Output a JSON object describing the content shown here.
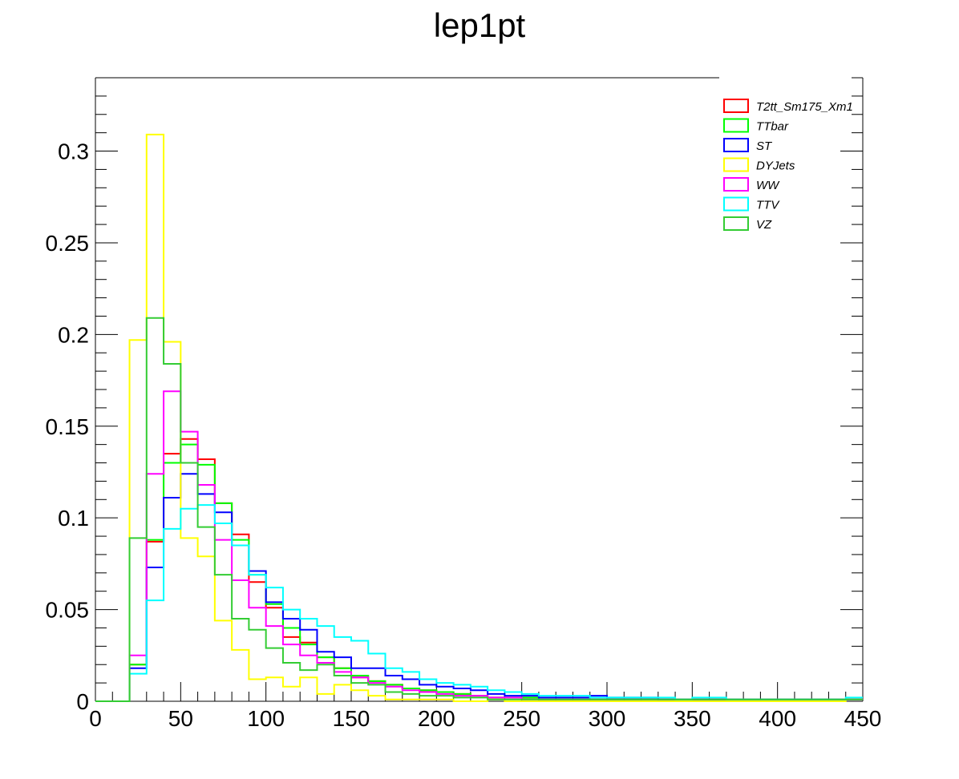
{
  "chart_data": {
    "type": "histogram",
    "title": "lep1pt",
    "xlabel": "",
    "ylabel": "",
    "xlim": [
      0,
      450
    ],
    "ylim": [
      0,
      0.34
    ],
    "bin_edges": [
      0,
      10,
      20,
      30,
      40,
      50,
      60,
      70,
      80,
      90,
      100,
      110,
      120,
      130,
      140,
      150,
      160,
      170,
      180,
      190,
      200,
      210,
      220,
      230,
      240,
      250,
      260,
      270,
      280,
      290,
      300,
      310,
      320,
      330,
      340,
      350,
      360,
      370,
      380,
      390,
      400,
      410,
      420,
      430,
      440,
      450
    ],
    "x_ticks": [
      0,
      50,
      100,
      150,
      200,
      250,
      300,
      350,
      400,
      450
    ],
    "x_tick_labels": [
      "0",
      "50",
      "100",
      "150",
      "200",
      "250",
      "300",
      "350",
      "400",
      "450"
    ],
    "y_ticks": [
      0,
      0.05,
      0.1,
      0.15,
      0.2,
      0.25,
      0.3
    ],
    "y_tick_labels": [
      "0",
      "0.05",
      "0.1",
      "0.15",
      "0.2",
      "0.25",
      "0.3"
    ],
    "grid": false,
    "legend_position": "top-right",
    "series": [
      {
        "name": "T2tt_Sm175_Xm1",
        "color": "#ff0000",
        "values": [
          0,
          0,
          0.02,
          0.087,
          0.135,
          0.143,
          0.132,
          0.108,
          0.091,
          0.065,
          0.051,
          0.035,
          0.032,
          0.024,
          0.018,
          0.013,
          0.011,
          0.009,
          0.007,
          0.006,
          0.005,
          0.004,
          0.003,
          0.002,
          0.002,
          0.002,
          0.001,
          0.001,
          0.001,
          0.001,
          0.001,
          0.001,
          0.001,
          0.001,
          0.001,
          0.001,
          0.001,
          0.001,
          0.001,
          0.001,
          0.001,
          0.001,
          0.001,
          0.001,
          0.001
        ]
      },
      {
        "name": "TTbar",
        "color": "#00ff00",
        "values": [
          0,
          0,
          0.02,
          0.088,
          0.13,
          0.14,
          0.129,
          0.108,
          0.088,
          0.069,
          0.053,
          0.04,
          0.031,
          0.024,
          0.018,
          0.014,
          0.011,
          0.009,
          0.007,
          0.006,
          0.005,
          0.004,
          0.003,
          0.002,
          0.002,
          0.002,
          0.001,
          0.001,
          0.001,
          0.001,
          0.001,
          0.001,
          0.001,
          0.001,
          0.001,
          0.001,
          0.001,
          0.001,
          0.001,
          0.001,
          0.001,
          0.001,
          0.001,
          0.001,
          0.001
        ]
      },
      {
        "name": "ST",
        "color": "#0000ff",
        "values": [
          0,
          0,
          0.018,
          0.073,
          0.111,
          0.124,
          0.113,
          0.103,
          0.085,
          0.071,
          0.054,
          0.045,
          0.039,
          0.027,
          0.024,
          0.018,
          0.018,
          0.014,
          0.012,
          0.009,
          0.008,
          0.007,
          0.006,
          0.004,
          0.003,
          0.003,
          0.002,
          0.002,
          0.002,
          0.003,
          0.002,
          0.002,
          0.002,
          0.001,
          0.001,
          0.001,
          0.001,
          0.001,
          0.001,
          0.001,
          0.001,
          0.001,
          0.001,
          0.001,
          0.001
        ]
      },
      {
        "name": "DYJets",
        "color": "#ffff00",
        "values": [
          0,
          0,
          0.197,
          0.309,
          0.196,
          0.089,
          0.079,
          0.044,
          0.028,
          0.012,
          0.013,
          0.008,
          0.013,
          0.004,
          0.009,
          0.006,
          0.003,
          0.001,
          0.001,
          0.001,
          0.001,
          0,
          0,
          0.001,
          0,
          0,
          0,
          0,
          0,
          0,
          0,
          0,
          0,
          0,
          0,
          0,
          0,
          0,
          0,
          0,
          0,
          0,
          0,
          0,
          0.001
        ]
      },
      {
        "name": "WW",
        "color": "#ff00ff",
        "values": [
          0,
          0,
          0.025,
          0.124,
          0.169,
          0.147,
          0.118,
          0.088,
          0.066,
          0.051,
          0.041,
          0.031,
          0.025,
          0.021,
          0.016,
          0.013,
          0.01,
          0.008,
          0.006,
          0.005,
          0.004,
          0.003,
          0.003,
          0.002,
          0.002,
          0.001,
          0.001,
          0.001,
          0.001,
          0.001,
          0.001,
          0.001,
          0.001,
          0.001,
          0.001,
          0.001,
          0.001,
          0.001,
          0.001,
          0.001,
          0.001,
          0.001,
          0.001,
          0.001,
          0.001
        ]
      },
      {
        "name": "TTV",
        "color": "#00ffff",
        "values": [
          0,
          0,
          0.015,
          0.055,
          0.094,
          0.105,
          0.107,
          0.097,
          0.085,
          0.069,
          0.062,
          0.05,
          0.045,
          0.041,
          0.035,
          0.033,
          0.026,
          0.018,
          0.016,
          0.012,
          0.01,
          0.009,
          0.008,
          0.006,
          0.005,
          0.004,
          0.003,
          0.003,
          0.003,
          0.002,
          0.002,
          0.002,
          0.002,
          0.002,
          0.001,
          0.002,
          0.002,
          0.001,
          0.001,
          0.001,
          0.001,
          0.001,
          0.001,
          0.001,
          0.002
        ]
      },
      {
        "name": "VZ",
        "color": "#33cc33",
        "values": [
          0,
          0,
          0.089,
          0.209,
          0.184,
          0.13,
          0.095,
          0.069,
          0.045,
          0.039,
          0.029,
          0.021,
          0.017,
          0.02,
          0.014,
          0.01,
          0.009,
          0.005,
          0.004,
          0.003,
          0.003,
          0.002,
          0.002,
          0.001,
          0.001,
          0.001,
          0.001,
          0.001,
          0.001,
          0.001,
          0.001,
          0.001,
          0.001,
          0.001,
          0.001,
          0.001,
          0.001,
          0.001,
          0.001,
          0.001,
          0.001,
          0.001,
          0.001,
          0.001,
          0.001
        ]
      }
    ]
  }
}
